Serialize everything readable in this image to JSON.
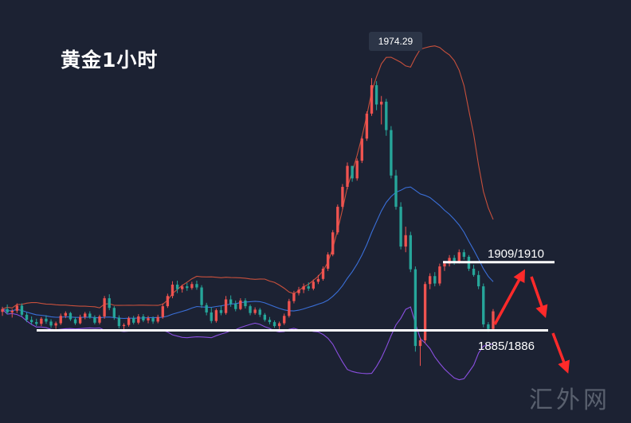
{
  "title": "黄金1小时",
  "peak_label": "1974.29",
  "resistance_label": "1909/1910",
  "support_label": "1885/1886",
  "watermark": "汇外网",
  "colors": {
    "background": "#1c2233",
    "up_candle": "#ef5350",
    "down_candle": "#26a69a",
    "upper_band": "#c8503c",
    "middle_band": "#3a6fd8",
    "lower_band": "#8a4fe0",
    "level_line": "#ffffff",
    "arrow": "#ff2a2a"
  },
  "chart_data": {
    "type": "candlestick",
    "indicator": "bollinger_bands",
    "y_range": [
      1868,
      1985
    ],
    "peak": 1974.29,
    "levels": [
      {
        "name": "resistance",
        "value": 1909.5,
        "label": "1909/1910"
      },
      {
        "name": "support",
        "value": 1885.5,
        "label": "1885/1886"
      }
    ],
    "candles": [
      [
        1892.0,
        1893.8,
        1890.6,
        1893.0
      ],
      [
        1893.0,
        1894.6,
        1891.2,
        1891.8
      ],
      [
        1891.8,
        1893.0,
        1890.0,
        1892.4
      ],
      [
        1892.4,
        1895.0,
        1891.6,
        1894.2
      ],
      [
        1894.2,
        1895.0,
        1890.4,
        1891.0
      ],
      [
        1891.0,
        1891.8,
        1888.4,
        1889.2
      ],
      [
        1889.2,
        1890.4,
        1887.6,
        1888.4
      ],
      [
        1888.4,
        1889.6,
        1887.0,
        1887.8
      ],
      [
        1887.8,
        1890.2,
        1887.0,
        1889.6
      ],
      [
        1889.6,
        1890.8,
        1887.8,
        1888.6
      ],
      [
        1888.6,
        1889.4,
        1886.4,
        1887.2
      ],
      [
        1887.2,
        1888.6,
        1886.0,
        1888.0
      ],
      [
        1888.0,
        1891.4,
        1887.4,
        1890.6
      ],
      [
        1890.6,
        1892.2,
        1889.8,
        1891.6
      ],
      [
        1891.6,
        1892.0,
        1888.8,
        1889.4
      ],
      [
        1889.4,
        1890.2,
        1887.4,
        1888.0
      ],
      [
        1888.0,
        1891.0,
        1887.6,
        1890.2
      ],
      [
        1890.2,
        1892.0,
        1889.4,
        1891.4
      ],
      [
        1891.4,
        1892.2,
        1889.6,
        1890.0
      ],
      [
        1890.0,
        1890.8,
        1887.6,
        1888.2
      ],
      [
        1888.2,
        1891.0,
        1887.6,
        1890.4
      ],
      [
        1890.4,
        1897.6,
        1889.6,
        1896.8
      ],
      [
        1896.8,
        1898.2,
        1892.6,
        1893.4
      ],
      [
        1893.4,
        1894.0,
        1889.2,
        1890.0
      ],
      [
        1890.0,
        1890.8,
        1886.2,
        1887.0
      ],
      [
        1887.0,
        1888.0,
        1885.8,
        1887.4
      ],
      [
        1887.4,
        1890.4,
        1886.8,
        1889.8
      ],
      [
        1889.8,
        1890.6,
        1887.6,
        1888.2
      ],
      [
        1888.2,
        1891.2,
        1887.6,
        1890.4
      ],
      [
        1890.4,
        1891.2,
        1888.4,
        1889.0
      ],
      [
        1889.0,
        1890.6,
        1888.0,
        1889.8
      ],
      [
        1889.8,
        1890.4,
        1887.8,
        1888.6
      ],
      [
        1888.6,
        1891.0,
        1888.0,
        1890.2
      ],
      [
        1890.2,
        1895.0,
        1889.6,
        1894.0
      ],
      [
        1894.0,
        1898.4,
        1893.4,
        1897.6
      ],
      [
        1897.6,
        1902.8,
        1896.8,
        1901.6
      ],
      [
        1901.6,
        1903.0,
        1898.6,
        1900.0
      ],
      [
        1900.0,
        1901.6,
        1898.8,
        1901.0
      ],
      [
        1901.0,
        1902.2,
        1899.4,
        1900.4
      ],
      [
        1900.4,
        1902.6,
        1899.8,
        1901.8
      ],
      [
        1901.8,
        1903.0,
        1899.8,
        1900.6
      ],
      [
        1900.6,
        1901.4,
        1893.4,
        1894.4
      ],
      [
        1894.4,
        1895.2,
        1890.8,
        1891.8
      ],
      [
        1891.8,
        1893.6,
        1888.0,
        1888.8
      ],
      [
        1888.8,
        1893.2,
        1888.2,
        1892.6
      ],
      [
        1892.6,
        1894.2,
        1890.8,
        1891.6
      ],
      [
        1891.6,
        1897.6,
        1891.0,
        1896.4
      ],
      [
        1896.4,
        1897.8,
        1893.8,
        1894.8
      ],
      [
        1894.8,
        1896.0,
        1892.2,
        1893.0
      ],
      [
        1893.0,
        1896.8,
        1892.6,
        1896.0
      ],
      [
        1896.0,
        1896.8,
        1893.2,
        1894.0
      ],
      [
        1894.0,
        1894.6,
        1890.8,
        1891.6
      ],
      [
        1891.6,
        1893.6,
        1891.0,
        1892.8
      ],
      [
        1892.8,
        1893.4,
        1890.2,
        1891.0
      ],
      [
        1891.0,
        1891.6,
        1888.6,
        1889.2
      ],
      [
        1889.2,
        1890.2,
        1887.6,
        1888.4
      ],
      [
        1888.4,
        1889.0,
        1886.4,
        1887.0
      ],
      [
        1887.0,
        1888.6,
        1885.6,
        1888.0
      ],
      [
        1888.0,
        1891.4,
        1887.4,
        1890.6
      ],
      [
        1890.6,
        1896.6,
        1890.0,
        1895.8
      ],
      [
        1895.8,
        1899.4,
        1895.0,
        1898.6
      ],
      [
        1898.6,
        1900.8,
        1897.8,
        1899.8
      ],
      [
        1899.8,
        1902.0,
        1898.6,
        1901.0
      ],
      [
        1901.0,
        1902.4,
        1899.4,
        1900.2
      ],
      [
        1900.2,
        1903.4,
        1899.6,
        1902.6
      ],
      [
        1902.6,
        1905.0,
        1901.8,
        1903.6
      ],
      [
        1903.6,
        1908.0,
        1903.0,
        1907.2
      ],
      [
        1907.2,
        1913.0,
        1906.4,
        1912.2
      ],
      [
        1912.2,
        1920.8,
        1911.6,
        1920.0
      ],
      [
        1920.0,
        1929.8,
        1919.2,
        1929.0
      ],
      [
        1929.0,
        1937.0,
        1928.2,
        1936.0
      ],
      [
        1936.0,
        1944.6,
        1935.2,
        1943.4
      ],
      [
        1943.4,
        1942.6,
        1937.8,
        1939.0
      ],
      [
        1939.0,
        1946.0,
        1938.2,
        1945.2
      ],
      [
        1945.2,
        1953.8,
        1944.4,
        1953.0
      ],
      [
        1953.0,
        1962.6,
        1952.2,
        1961.8
      ],
      [
        1961.8,
        1974.3,
        1961.0,
        1971.8
      ],
      [
        1971.8,
        1973.2,
        1963.0,
        1965.0
      ],
      [
        1965.0,
        1968.0,
        1958.0,
        1966.0
      ],
      [
        1966.0,
        1967.0,
        1954.0,
        1956.0
      ],
      [
        1956.0,
        1957.4,
        1939.0,
        1940.0
      ],
      [
        1940.0,
        1942.0,
        1928.0,
        1929.0
      ],
      [
        1929.0,
        1930.6,
        1914.0,
        1915.0
      ],
      [
        1915.0,
        1922.0,
        1913.0,
        1919.0
      ],
      [
        1919.0,
        1920.2,
        1906.0,
        1907.0
      ],
      [
        1907.0,
        1908.0,
        1878.0,
        1880.0
      ],
      [
        1880.0,
        1883.0,
        1873.0,
        1882.0
      ],
      [
        1882.0,
        1902.6,
        1881.0,
        1901.8
      ],
      [
        1901.8,
        1905.6,
        1900.0,
        1904.6
      ],
      [
        1904.6,
        1906.0,
        1901.0,
        1902.0
      ],
      [
        1902.0,
        1909.0,
        1901.2,
        1908.0
      ],
      [
        1908.0,
        1910.0,
        1906.4,
        1909.0
      ],
      [
        1909.0,
        1912.0,
        1908.0,
        1911.0
      ],
      [
        1911.0,
        1912.0,
        1908.6,
        1909.6
      ],
      [
        1909.6,
        1914.0,
        1909.0,
        1913.0
      ],
      [
        1913.0,
        1914.0,
        1910.4,
        1911.4
      ],
      [
        1911.4,
        1912.0,
        1906.4,
        1907.2
      ],
      [
        1907.2,
        1908.6,
        1904.4,
        1905.0
      ],
      [
        1905.0,
        1906.4,
        1900.0,
        1901.0
      ],
      [
        1901.0,
        1902.0,
        1886.6,
        1887.6
      ],
      [
        1887.6,
        1888.4,
        1885.0,
        1886.0
      ],
      [
        1886.0,
        1893.0,
        1885.4,
        1892.2
      ]
    ]
  }
}
